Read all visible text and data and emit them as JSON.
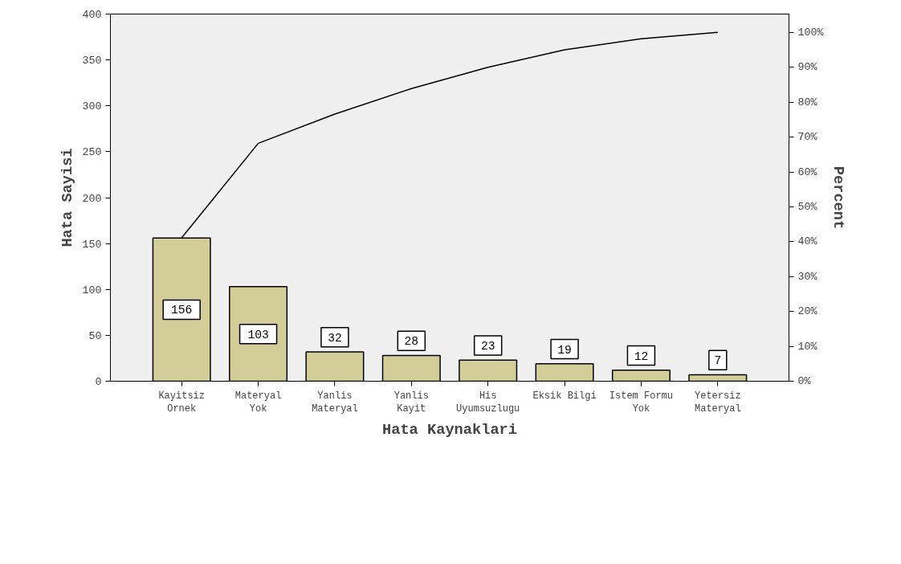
{
  "chart_data": {
    "type": "bar",
    "xlabel": "Hata Kaynaklari",
    "ylabel": "Hata Sayisi",
    "y2label": "Percent",
    "categories": [
      "Kayitsiz\nOrnek",
      "Materyal\nYok",
      "Yanlis\nMateryal",
      "Yanlis\nKayit",
      "His\nUyumsuzlugu",
      "Eksik Bilgi",
      "Istem Formu\nYok",
      "Yetersiz\nMateryal"
    ],
    "series": [
      {
        "color": "#d3ce97",
        "values": [
          156,
          103,
          32,
          28,
          23,
          19,
          12,
          7
        ],
        "value_labels": [
          "156",
          "103",
          "32",
          "28",
          "23",
          "19",
          "12",
          "7"
        ]
      },
      {
        "type": "line",
        "axis": "y2",
        "color": "#000000",
        "values": [
          41.1,
          68.2,
          76.6,
          83.9,
          90,
          95,
          98.2,
          100
        ]
      }
    ],
    "ylim": [
      0,
      400
    ],
    "yticks": [
      0,
      50,
      100,
      150,
      200,
      250,
      300,
      350,
      400
    ],
    "y2lim": [
      0,
      105.26
    ],
    "y2ticks": [
      {
        "value": 0,
        "label": "0%"
      },
      {
        "value": 10,
        "label": "10%"
      },
      {
        "value": 20,
        "label": "20%"
      },
      {
        "value": 30,
        "label": "30%"
      },
      {
        "value": 40,
        "label": "40%"
      },
      {
        "value": 50,
        "label": "50%"
      },
      {
        "value": 60,
        "label": "60%"
      },
      {
        "value": 70,
        "label": "70%"
      },
      {
        "value": 80,
        "label": "80%"
      },
      {
        "value": 90,
        "label": "90%"
      },
      {
        "value": 100,
        "label": "100%"
      }
    ],
    "grid": false
  }
}
